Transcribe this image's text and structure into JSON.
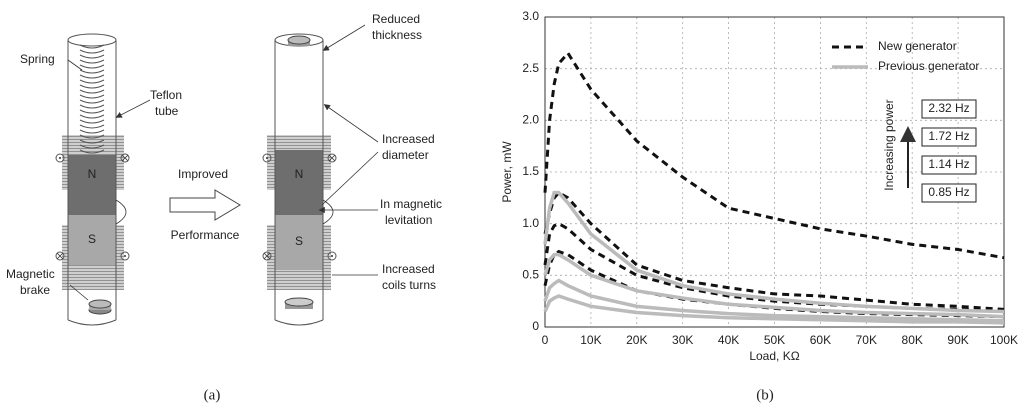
{
  "diagram": {
    "spring": "Spring",
    "teflon_tube": [
      "Teflon",
      "tube"
    ],
    "magnetic_brake": [
      "Magnetic",
      "brake"
    ],
    "left_north": "N",
    "left_south": "S",
    "improved": "Improved",
    "performance": "Performance",
    "right_north": "N",
    "right_south": "S",
    "reduced_thickness": [
      "Reduced",
      "thickness"
    ],
    "increased_diameter": [
      "Increased",
      "diameter"
    ],
    "in_magnetic_levitation": [
      "In magnetic",
      "levitation"
    ],
    "increased_coils_turns": [
      "Increased",
      "coils turns"
    ]
  },
  "captions": {
    "a": "(a)",
    "b": "(b)"
  },
  "chart_data": {
    "type": "line",
    "x_label": "Load, KΩ",
    "y_label": "Power, mW",
    "x": [
      0,
      1000,
      2000,
      3000,
      5000,
      10000,
      20000,
      30000,
      40000,
      50000,
      60000,
      70000,
      80000,
      90000,
      100000
    ],
    "xlim": [
      0,
      100000
    ],
    "xticks": [
      0,
      {
        "value": 10000,
        "label": "10K"
      },
      {
        "value": 20000,
        "label": "20K"
      },
      {
        "value": 30000,
        "label": "30K"
      },
      {
        "value": 40000,
        "label": "40K"
      },
      {
        "value": 50000,
        "label": "50K"
      },
      {
        "value": 60000,
        "label": "60K"
      },
      {
        "value": 70000,
        "label": "70K"
      },
      {
        "value": 80000,
        "label": "80K"
      },
      {
        "value": 90000,
        "label": "90K"
      },
      {
        "value": 100000,
        "label": "100K"
      }
    ],
    "ylim": [
      0,
      3
    ],
    "yticks": [
      0,
      0.5,
      {
        "value": 1,
        "label": "1.0"
      },
      1.5,
      {
        "value": 2,
        "label": "2.0"
      },
      2.5,
      {
        "value": 3,
        "label": "3.0"
      }
    ],
    "grid": true,
    "legend": "upper right",
    "curve_labels": [
      "2.32 Hz",
      "1.72 Hz",
      "1.14 Hz",
      "0.85 Hz"
    ],
    "annotation": "Increasing power",
    "series": [
      {
        "name": "New generator",
        "color": "#111111",
        "dashed": true,
        "curves": [
          [
            1.3,
            2.0,
            2.35,
            2.55,
            2.65,
            2.3,
            1.8,
            1.45,
            1.15,
            1.05,
            0.95,
            0.88,
            0.8,
            0.75,
            0.67
          ],
          [
            0.9,
            1.1,
            1.25,
            1.3,
            1.25,
            1.0,
            0.6,
            0.45,
            0.38,
            0.32,
            0.3,
            0.26,
            0.22,
            0.2,
            0.17
          ],
          [
            0.6,
            0.9,
            0.98,
            1.0,
            0.95,
            0.75,
            0.5,
            0.38,
            0.3,
            0.25,
            0.22,
            0.2,
            0.18,
            0.17,
            0.15
          ],
          [
            0.4,
            0.6,
            0.7,
            0.73,
            0.7,
            0.55,
            0.35,
            0.27,
            0.22,
            0.18,
            0.15,
            0.13,
            0.12,
            0.11,
            0.1
          ]
        ]
      },
      {
        "name": "Previous generator",
        "color": "#bbbbbb",
        "dashed": false,
        "curves": [
          [
            0.8,
            1.15,
            1.3,
            1.3,
            1.2,
            0.9,
            0.55,
            0.4,
            0.32,
            0.27,
            0.23,
            0.2,
            0.18,
            0.16,
            0.15
          ],
          [
            0.5,
            0.65,
            0.7,
            0.7,
            0.65,
            0.5,
            0.35,
            0.28,
            0.22,
            0.19,
            0.16,
            0.14,
            0.13,
            0.12,
            0.1
          ],
          [
            0.25,
            0.38,
            0.42,
            0.45,
            0.4,
            0.3,
            0.2,
            0.16,
            0.13,
            0.11,
            0.1,
            0.09,
            0.08,
            0.07,
            0.06
          ],
          [
            0.15,
            0.25,
            0.28,
            0.3,
            0.27,
            0.2,
            0.14,
            0.11,
            0.09,
            0.08,
            0.07,
            0.06,
            0.05,
            0.05,
            0.04
          ]
        ]
      }
    ]
  }
}
